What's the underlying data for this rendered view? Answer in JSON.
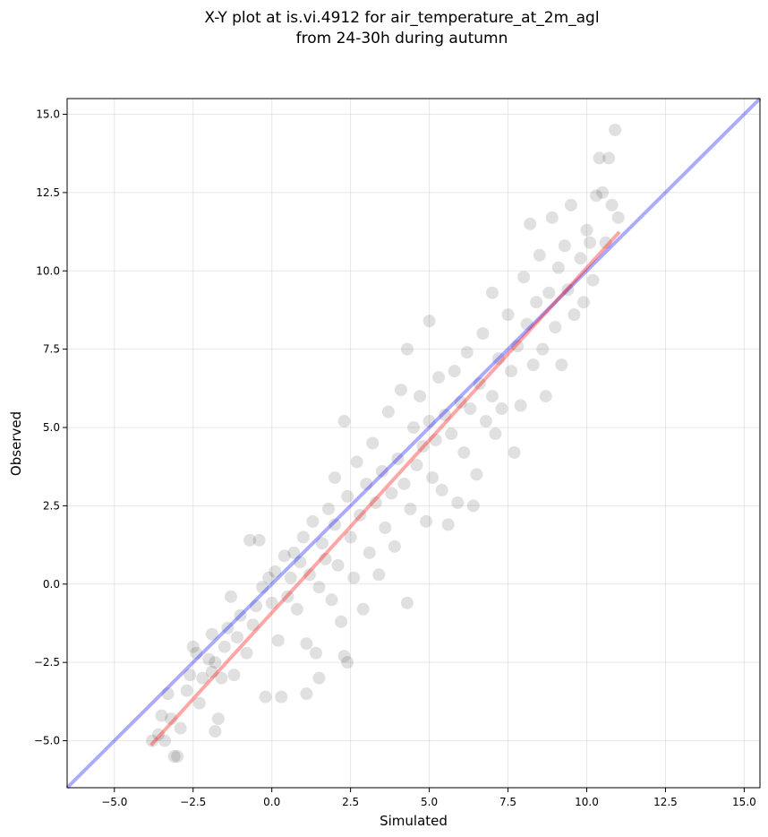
{
  "chart_data": {
    "type": "scatter",
    "title": [
      "X-Y plot at is.vi.4912 for air_temperature_at_2m_agl",
      "from 24-30h during autumn"
    ],
    "xlabel": "Simulated",
    "ylabel": "Observed",
    "xlim": [
      -6.5,
      15.5
    ],
    "ylim": [
      -6.5,
      15.5
    ],
    "x_ticks": [
      -5.0,
      -2.5,
      0.0,
      2.5,
      5.0,
      7.5,
      10.0,
      12.5,
      15.0
    ],
    "y_ticks": [
      -5.0,
      -2.5,
      0.0,
      2.5,
      5.0,
      7.5,
      10.0,
      12.5,
      15.0
    ],
    "x_tick_labels": [
      "−5.0",
      "−2.5",
      "0.0",
      "2.5",
      "5.0",
      "7.5",
      "10.0",
      "12.5",
      "15.0"
    ],
    "y_tick_labels": [
      "−5.0",
      "−2.5",
      "0.0",
      "2.5",
      "5.0",
      "7.5",
      "10.0",
      "12.5",
      "15.0"
    ],
    "grid": true,
    "point_color": "#000000",
    "identity_line": {
      "x": [
        -6.5,
        15.5
      ],
      "y": [
        -6.5,
        15.5
      ],
      "color": "#0000ff"
    },
    "fit_line": {
      "x": [
        -3.8,
        11.0
      ],
      "y": [
        -5.1,
        11.2
      ],
      "color": "#ff0000"
    },
    "points": [
      [
        -3.8,
        -5.0
      ],
      [
        -3.6,
        -4.8
      ],
      [
        -3.5,
        -4.2
      ],
      [
        -3.4,
        -5.0
      ],
      [
        -3.2,
        -4.3
      ],
      [
        -3.1,
        -5.5
      ],
      [
        -3.0,
        -5.5
      ],
      [
        -3.3,
        -3.5
      ],
      [
        -2.9,
        -4.6
      ],
      [
        -2.7,
        -3.4
      ],
      [
        -2.6,
        -2.9
      ],
      [
        -2.5,
        -2.0
      ],
      [
        -2.4,
        -2.2
      ],
      [
        -2.3,
        -3.8
      ],
      [
        -2.2,
        -3.0
      ],
      [
        -2.0,
        -2.4
      ],
      [
        -1.9,
        -1.6
      ],
      [
        -1.9,
        -2.8
      ],
      [
        -1.8,
        -2.5
      ],
      [
        -1.7,
        -4.3
      ],
      [
        -1.8,
        -4.7
      ],
      [
        -1.6,
        -3.0
      ],
      [
        -1.5,
        -2.0
      ],
      [
        -1.4,
        -1.4
      ],
      [
        -1.3,
        -0.4
      ],
      [
        -1.2,
        -2.9
      ],
      [
        -1.1,
        -1.7
      ],
      [
        -1.0,
        -1.0
      ],
      [
        -0.8,
        -2.2
      ],
      [
        -0.7,
        1.4
      ],
      [
        -0.6,
        -1.3
      ],
      [
        -0.5,
        -0.7
      ],
      [
        -0.4,
        1.4
      ],
      [
        -0.3,
        -0.1
      ],
      [
        -0.2,
        -3.6
      ],
      [
        -0.1,
        0.2
      ],
      [
        0.0,
        -0.6
      ],
      [
        0.1,
        0.4
      ],
      [
        0.2,
        -1.8
      ],
      [
        0.3,
        -3.6
      ],
      [
        0.4,
        0.9
      ],
      [
        0.5,
        -0.4
      ],
      [
        0.6,
        0.2
      ],
      [
        0.7,
        1.0
      ],
      [
        0.8,
        -0.8
      ],
      [
        0.9,
        0.7
      ],
      [
        1.0,
        1.5
      ],
      [
        1.1,
        -1.9
      ],
      [
        1.1,
        -3.5
      ],
      [
        1.2,
        0.3
      ],
      [
        1.3,
        2.0
      ],
      [
        1.4,
        -2.2
      ],
      [
        1.5,
        -0.1
      ],
      [
        1.5,
        -3.0
      ],
      [
        1.6,
        1.3
      ],
      [
        1.7,
        0.8
      ],
      [
        1.8,
        2.4
      ],
      [
        1.9,
        -0.5
      ],
      [
        2.0,
        3.4
      ],
      [
        2.0,
        1.9
      ],
      [
        2.1,
        0.6
      ],
      [
        2.2,
        -1.2
      ],
      [
        2.3,
        5.2
      ],
      [
        2.3,
        -2.3
      ],
      [
        2.4,
        2.8
      ],
      [
        2.4,
        -2.5
      ],
      [
        2.5,
        1.5
      ],
      [
        2.6,
        0.2
      ],
      [
        2.7,
        3.9
      ],
      [
        2.8,
        2.2
      ],
      [
        2.9,
        -0.8
      ],
      [
        3.0,
        3.2
      ],
      [
        3.1,
        1.0
      ],
      [
        3.2,
        4.5
      ],
      [
        3.3,
        2.6
      ],
      [
        3.4,
        0.3
      ],
      [
        3.5,
        3.6
      ],
      [
        3.6,
        1.8
      ],
      [
        3.7,
        5.5
      ],
      [
        3.8,
        2.9
      ],
      [
        3.9,
        1.2
      ],
      [
        4.0,
        4.0
      ],
      [
        4.1,
        6.2
      ],
      [
        4.2,
        3.2
      ],
      [
        4.3,
        -0.6
      ],
      [
        4.3,
        7.5
      ],
      [
        4.4,
        2.4
      ],
      [
        4.5,
        5.0
      ],
      [
        4.6,
        3.8
      ],
      [
        4.7,
        6.0
      ],
      [
        4.8,
        4.4
      ],
      [
        4.9,
        2.0
      ],
      [
        5.0,
        8.4
      ],
      [
        5.0,
        5.2
      ],
      [
        5.1,
        3.4
      ],
      [
        5.2,
        4.6
      ],
      [
        5.3,
        6.6
      ],
      [
        5.4,
        3.0
      ],
      [
        5.5,
        5.4
      ],
      [
        5.6,
        1.9
      ],
      [
        5.7,
        4.8
      ],
      [
        5.8,
        6.8
      ],
      [
        5.9,
        2.6
      ],
      [
        6.0,
        5.8
      ],
      [
        6.1,
        4.2
      ],
      [
        6.2,
        7.4
      ],
      [
        6.3,
        5.6
      ],
      [
        6.4,
        2.5
      ],
      [
        6.5,
        3.5
      ],
      [
        6.6,
        6.4
      ],
      [
        6.7,
        8.0
      ],
      [
        6.8,
        5.2
      ],
      [
        7.0,
        6.0
      ],
      [
        7.0,
        9.3
      ],
      [
        7.1,
        4.8
      ],
      [
        7.2,
        7.2
      ],
      [
        7.3,
        5.6
      ],
      [
        7.5,
        8.6
      ],
      [
        7.6,
        6.8
      ],
      [
        7.7,
        4.2
      ],
      [
        7.8,
        7.6
      ],
      [
        7.9,
        5.7
      ],
      [
        8.0,
        9.8
      ],
      [
        8.1,
        8.3
      ],
      [
        8.2,
        11.5
      ],
      [
        8.3,
        7.0
      ],
      [
        8.4,
        9.0
      ],
      [
        8.5,
        10.5
      ],
      [
        8.6,
        7.5
      ],
      [
        8.7,
        6.0
      ],
      [
        8.8,
        9.3
      ],
      [
        8.9,
        11.7
      ],
      [
        9.0,
        8.2
      ],
      [
        9.1,
        10.1
      ],
      [
        9.2,
        7.0
      ],
      [
        9.3,
        10.8
      ],
      [
        9.4,
        9.4
      ],
      [
        9.5,
        12.1
      ],
      [
        9.6,
        8.6
      ],
      [
        9.8,
        10.4
      ],
      [
        9.9,
        9.0
      ],
      [
        10.0,
        11.3
      ],
      [
        10.1,
        10.9
      ],
      [
        10.2,
        9.7
      ],
      [
        10.3,
        12.4
      ],
      [
        10.4,
        13.6
      ],
      [
        10.5,
        12.5
      ],
      [
        10.6,
        10.9
      ],
      [
        10.7,
        13.6
      ],
      [
        10.8,
        12.1
      ],
      [
        10.9,
        14.5
      ],
      [
        11.0,
        11.7
      ]
    ]
  }
}
